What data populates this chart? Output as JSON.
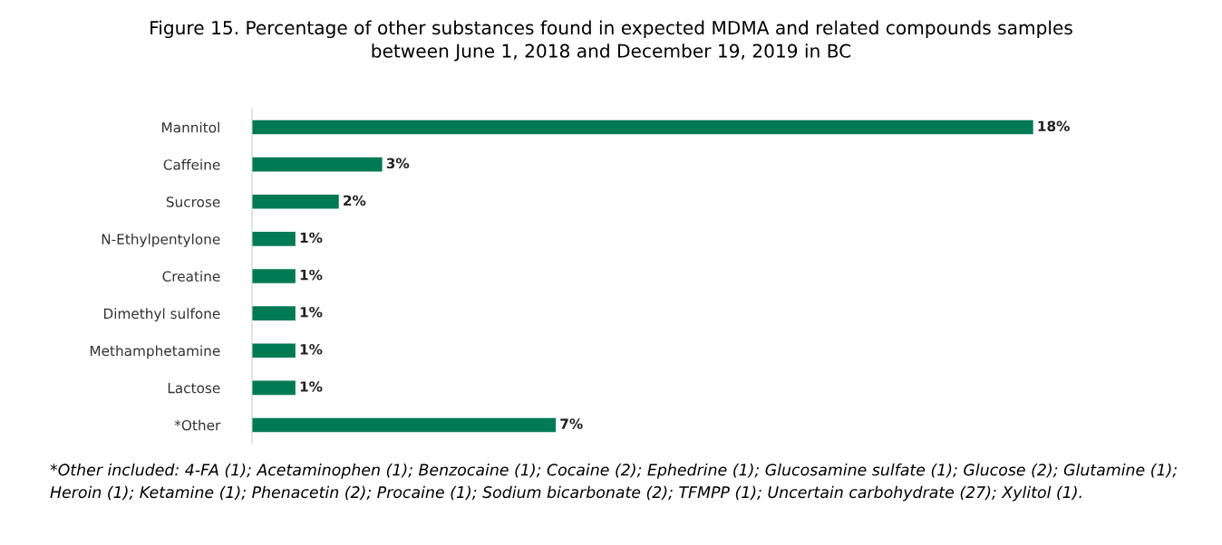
{
  "chart_data": {
    "type": "bar",
    "orientation": "horizontal",
    "title": "Figure 15. Percentage of other substances found in expected MDMA and related compounds samples\nbetween June 1, 2018 and December 19, 2019 in BC",
    "categories": [
      "Mannitol",
      "Caffeine",
      "Sucrose",
      "N-Ethylpentylone",
      "Creatine",
      "Dimethyl sulfone",
      "Methamphetamine",
      "Lactose",
      "*Other"
    ],
    "values": [
      18,
      3,
      2,
      1,
      1,
      1,
      1,
      1,
      7
    ],
    "value_labels": [
      "18%",
      "3%",
      "2%",
      "1%",
      "1%",
      "1%",
      "1%",
      "1%",
      "7%"
    ],
    "color": "#007a53",
    "grid": false,
    "legend": false,
    "annotations": [
      "*Other included: 4-FA (1); Acetaminophen (1); Benzocaine (1); Cocaine (2); Ephedrine (1); Glucosamine sulfate (1); Glucose (2); Glutamine (1); Heroin (1); Ketamine (1); Phenacetin (2); Procaine (1); Sodium bicarbonate (2); TFMPP (1); Uncertain carbohydrate (27); Xylitol (1)."
    ]
  }
}
